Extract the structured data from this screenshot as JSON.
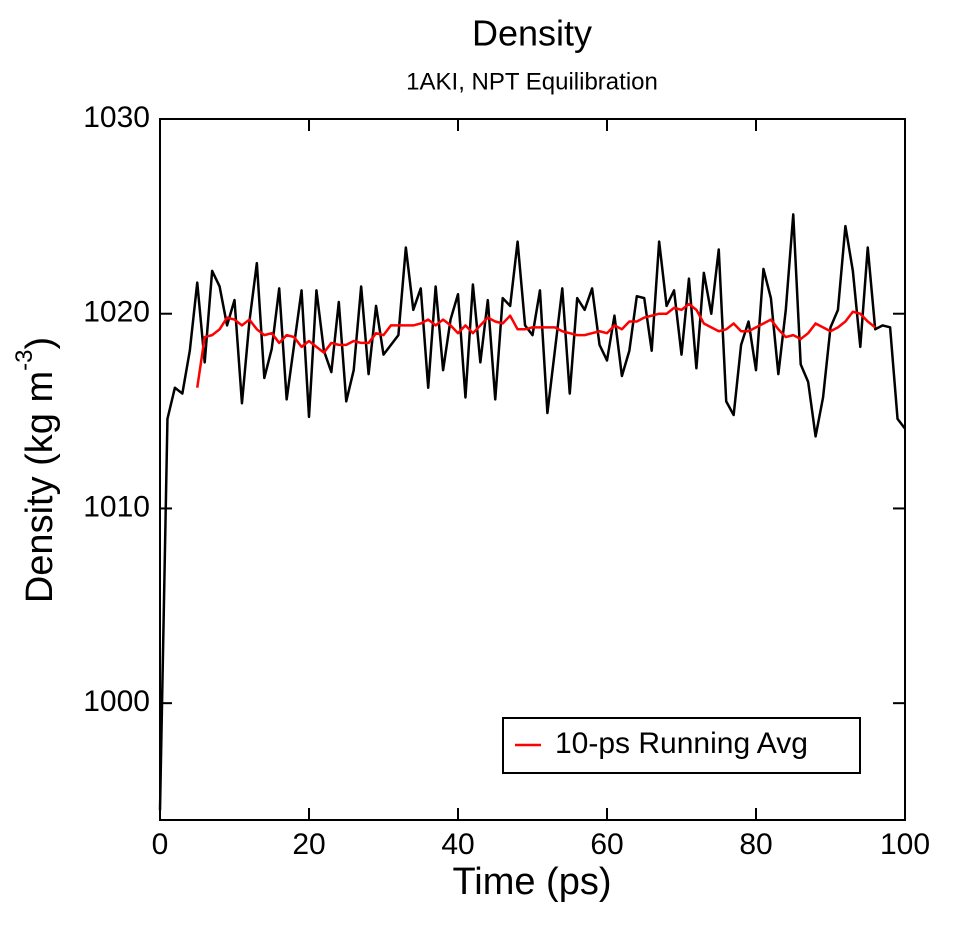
{
  "chart_data": {
    "type": "line",
    "title": "Density",
    "subtitle": "1AKI, NPT Equilibration",
    "xlabel": "Time (ps)",
    "ylabel_parts": [
      "Density (kg m",
      "-3",
      ")"
    ],
    "xlim": [
      0,
      100
    ],
    "ylim": [
      994,
      1030
    ],
    "xticks": [
      0,
      20,
      40,
      60,
      80,
      100
    ],
    "yticks": [
      1000,
      1010,
      1020,
      1030
    ],
    "legend_position": "lower right",
    "series": [
      {
        "color": "#000000",
        "x": [
          0,
          1,
          2,
          3,
          4,
          5,
          6,
          7,
          8,
          9,
          10,
          11,
          12,
          13,
          14,
          15,
          16,
          17,
          18,
          19,
          20,
          21,
          22,
          23,
          24,
          25,
          26,
          27,
          28,
          29,
          30,
          31,
          32,
          33,
          34,
          35,
          36,
          37,
          38,
          39,
          40,
          41,
          42,
          43,
          44,
          45,
          46,
          47,
          48,
          49,
          50,
          51,
          52,
          53,
          54,
          55,
          56,
          57,
          58,
          59,
          60,
          61,
          62,
          63,
          64,
          65,
          66,
          67,
          68,
          69,
          70,
          71,
          72,
          73,
          74,
          75,
          76,
          77,
          78,
          79,
          80,
          81,
          82,
          83,
          84,
          85,
          86,
          87,
          88,
          89,
          90,
          91,
          92,
          93,
          94,
          95,
          96,
          97,
          98,
          99,
          100
        ],
        "values": [
          994.5,
          1014.6,
          1016.2,
          1015.9,
          1018.1,
          1021.6,
          1017.5,
          1022.2,
          1021.4,
          1019.4,
          1020.7,
          1015.4,
          1019.6,
          1022.6,
          1016.7,
          1018.2,
          1021.3,
          1015.6,
          1018.4,
          1021.2,
          1014.7,
          1021.2,
          1018.1,
          1017.0,
          1020.6,
          1015.5,
          1017.1,
          1021.4,
          1016.9,
          1020.4,
          1017.9,
          1018.4,
          1018.9,
          1023.4,
          1020.2,
          1021.3,
          1016.2,
          1021.4,
          1017.1,
          1019.7,
          1021.0,
          1015.7,
          1021.5,
          1017.5,
          1020.7,
          1015.6,
          1020.8,
          1020.4,
          1023.7,
          1019.4,
          1018.9,
          1021.2,
          1014.9,
          1018.1,
          1021.3,
          1015.9,
          1020.8,
          1020.2,
          1021.3,
          1018.4,
          1017.6,
          1019.9,
          1016.8,
          1018.1,
          1020.9,
          1020.8,
          1018.1,
          1023.7,
          1020.4,
          1021.2,
          1017.9,
          1021.8,
          1017.2,
          1022.1,
          1020.0,
          1023.3,
          1015.5,
          1014.8,
          1018.4,
          1019.6,
          1017.1,
          1022.3,
          1020.8,
          1016.9,
          1020.2,
          1025.1,
          1017.4,
          1016.5,
          1013.7,
          1015.7,
          1019.3,
          1020.2,
          1024.5,
          1022.2,
          1018.3,
          1023.4,
          1019.2,
          1019.4,
          1019.3,
          1014.6,
          1014.1
        ]
      },
      {
        "name": "10-ps Running Avg",
        "color": "#ff0000",
        "x": [
          5,
          6,
          7,
          8,
          9,
          10,
          11,
          12,
          13,
          14,
          15,
          16,
          17,
          18,
          19,
          20,
          21,
          22,
          23,
          24,
          25,
          26,
          27,
          28,
          29,
          30,
          31,
          32,
          33,
          34,
          35,
          36,
          37,
          38,
          39,
          40,
          41,
          42,
          43,
          44,
          45,
          46,
          47,
          48,
          49,
          50,
          51,
          52,
          53,
          54,
          55,
          56,
          57,
          58,
          59,
          60,
          61,
          62,
          63,
          64,
          65,
          66,
          67,
          68,
          69,
          70,
          71,
          72,
          73,
          74,
          75,
          76,
          77,
          78,
          79,
          80,
          81,
          82,
          83,
          84,
          85,
          86,
          87,
          88,
          89,
          90,
          91,
          92,
          93,
          94,
          95,
          96
        ],
        "values": [
          1016.2,
          1018.8,
          1018.9,
          1019.2,
          1019.8,
          1019.7,
          1019.4,
          1019.7,
          1019.2,
          1018.9,
          1019.0,
          1018.5,
          1018.9,
          1018.8,
          1018.3,
          1018.6,
          1018.3,
          1018.0,
          1018.5,
          1018.4,
          1018.4,
          1018.6,
          1018.5,
          1018.5,
          1019.0,
          1018.9,
          1019.4,
          1019.4,
          1019.4,
          1019.4,
          1019.5,
          1019.7,
          1019.4,
          1019.7,
          1019.4,
          1019.0,
          1019.4,
          1019.0,
          1019.4,
          1019.8,
          1019.6,
          1019.5,
          1019.9,
          1019.2,
          1019.2,
          1019.3,
          1019.3,
          1019.3,
          1019.3,
          1019.1,
          1019.0,
          1018.9,
          1018.9,
          1019.0,
          1019.1,
          1019.0,
          1019.4,
          1019.2,
          1019.6,
          1019.6,
          1019.8,
          1019.9,
          1020.0,
          1020.0,
          1020.3,
          1020.2,
          1020.5,
          1020.2,
          1019.5,
          1019.3,
          1019.1,
          1019.2,
          1019.5,
          1019.1,
          1019.1,
          1019.3,
          1019.5,
          1019.7,
          1019.2,
          1018.8,
          1018.9,
          1018.7,
          1019.0,
          1019.5,
          1019.3,
          1019.1,
          1019.3,
          1019.6,
          1020.1,
          1020.0,
          1019.6,
          1019.3
        ]
      }
    ]
  }
}
